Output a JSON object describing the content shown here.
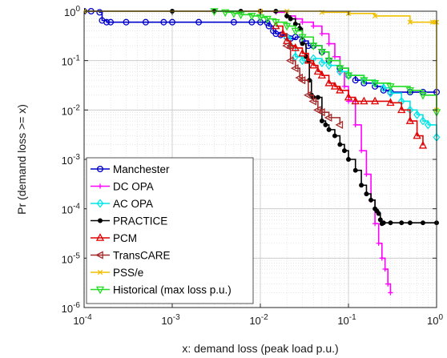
{
  "chart_data": {
    "type": "line",
    "xlabel": "x: demand loss (peak load p.u.)",
    "ylabel": "Pr (demand loss >= x)",
    "xscale": "log",
    "yscale": "log",
    "xlim": [
      0.0001,
      1
    ],
    "ylim": [
      1e-06,
      1
    ],
    "x_ticks": [
      {
        "base": "10",
        "exp": "-4"
      },
      {
        "base": "10",
        "exp": "-3"
      },
      {
        "base": "10",
        "exp": "-2"
      },
      {
        "base": "10",
        "exp": "-1"
      },
      {
        "base": "10",
        "exp": "0"
      }
    ],
    "y_ticks": [
      {
        "base": "10",
        "exp": "0"
      },
      {
        "base": "10",
        "exp": "-1"
      },
      {
        "base": "10",
        "exp": "-2"
      },
      {
        "base": "10",
        "exp": "-3"
      },
      {
        "base": "10",
        "exp": "-4"
      },
      {
        "base": "10",
        "exp": "-5"
      },
      {
        "base": "10",
        "exp": "-6"
      }
    ],
    "grid": true,
    "legend_position": "bottom-left",
    "series": [
      {
        "name": "Manchester",
        "color": "#0000cc",
        "marker": "circle",
        "x": [
          0.0001,
          0.00012,
          0.00015,
          0.00016,
          0.00018,
          0.0002,
          0.0003,
          0.0005,
          0.0008,
          0.001,
          0.002,
          0.005,
          0.008,
          0.01,
          0.012,
          0.0125,
          0.014,
          0.015,
          0.017,
          0.02,
          0.022,
          0.025,
          0.03,
          0.035,
          0.04,
          0.05,
          0.06,
          0.08,
          0.1,
          0.12,
          0.15,
          0.2,
          0.25,
          0.3,
          0.5,
          0.7,
          1.0
        ],
        "y": [
          1,
          1,
          0.95,
          0.65,
          0.6,
          0.6,
          0.6,
          0.6,
          0.6,
          0.6,
          0.6,
          0.6,
          0.6,
          0.6,
          0.58,
          0.5,
          0.4,
          0.35,
          0.33,
          0.3,
          0.28,
          0.3,
          0.25,
          0.2,
          0.2,
          0.15,
          0.1,
          0.07,
          0.05,
          0.04,
          0.035,
          0.03,
          0.025,
          0.023,
          0.023,
          0.023,
          0.023
        ]
      },
      {
        "name": "DC OPA",
        "color": "#ff00ff",
        "marker": "plus",
        "x": [
          0.01,
          0.015,
          0.02,
          0.025,
          0.03,
          0.04,
          0.05,
          0.06,
          0.07,
          0.08,
          0.09,
          0.1,
          0.12,
          0.14,
          0.16,
          0.18,
          0.2,
          0.22,
          0.24,
          0.26,
          0.28,
          0.3
        ],
        "y": [
          1,
          0.95,
          0.8,
          0.7,
          0.6,
          0.5,
          0.35,
          0.22,
          0.12,
          0.06,
          0.03,
          0.015,
          0.005,
          0.0015,
          0.0005,
          0.00015,
          5e-05,
          2e-05,
          1e-05,
          6e-06,
          3e-06,
          2e-06
        ]
      },
      {
        "name": "AC OPA",
        "color": "#00e5e5",
        "marker": "diamond",
        "x": [
          0.02,
          0.022,
          0.025,
          0.03,
          0.04,
          0.05,
          0.06,
          0.08,
          0.1,
          0.15,
          0.2,
          0.25,
          0.3,
          0.4,
          0.5,
          0.6,
          0.7,
          0.8,
          1.0
        ],
        "y": [
          0.3,
          0.2,
          0.12,
          0.1,
          0.11,
          0.09,
          0.08,
          0.06,
          0.05,
          0.04,
          0.035,
          0.028,
          0.022,
          0.015,
          0.01,
          0.008,
          0.006,
          0.005,
          0.0028
        ]
      },
      {
        "name": "PRACTICE",
        "color": "#000000",
        "marker": "dot",
        "x": [
          0.0001,
          0.001,
          0.003,
          0.006,
          0.01,
          0.015,
          0.02,
          0.022,
          0.025,
          0.028,
          0.03,
          0.033,
          0.035,
          0.036,
          0.038,
          0.04,
          0.045,
          0.05,
          0.055,
          0.06,
          0.07,
          0.08,
          0.09,
          0.1,
          0.12,
          0.14,
          0.16,
          0.18,
          0.2,
          0.21,
          0.22,
          0.23,
          0.24,
          0.25,
          0.3,
          0.4,
          0.5,
          0.7,
          1.0
        ],
        "y": [
          1,
          1,
          1,
          1,
          1,
          1,
          0.8,
          0.7,
          0.55,
          0.45,
          0.22,
          0.12,
          0.1,
          0.04,
          0.02,
          0.018,
          0.018,
          0.006,
          0.005,
          0.004,
          0.003,
          0.002,
          0.0015,
          0.001,
          0.0006,
          0.0003,
          0.0002,
          0.00015,
          0.0001,
          9e-05,
          8e-05,
          6e-05,
          5e-05,
          5.2e-05,
          5.2e-05,
          5.2e-05,
          5.2e-05,
          5.2e-05,
          5.2e-05
        ]
      },
      {
        "name": "PCM",
        "color": "#e00000",
        "marker": "triangle-up",
        "x": [
          0.015,
          0.018,
          0.02,
          0.022,
          0.025,
          0.03,
          0.035,
          0.04,
          0.045,
          0.05,
          0.06,
          0.07,
          0.08,
          0.1,
          0.12,
          0.15,
          0.2,
          0.3,
          0.4,
          0.5,
          0.6,
          0.7
        ],
        "y": [
          0.5,
          0.35,
          0.25,
          0.2,
          0.18,
          0.14,
          0.1,
          0.08,
          0.06,
          0.05,
          0.035,
          0.03,
          0.025,
          0.018,
          0.015,
          0.015,
          0.015,
          0.014,
          0.01,
          0.006,
          0.003,
          0.0019
        ]
      },
      {
        "name": "TransCARE",
        "color": "#a52a2a",
        "marker": "triangle-left",
        "x": [
          0.02,
          0.022,
          0.025,
          0.028,
          0.03,
          0.035,
          0.04,
          0.045,
          0.05,
          0.06,
          0.08
        ],
        "y": [
          0.2,
          0.1,
          0.07,
          0.045,
          0.04,
          0.02,
          0.015,
          0.01,
          0.009,
          0.007,
          0.005
        ]
      },
      {
        "name": "PSS/e",
        "color": "#f0c000",
        "marker": "x",
        "x": [
          0.0001,
          0.01,
          0.02,
          0.05,
          0.1,
          0.2,
          0.5,
          0.9,
          0.95,
          1.0,
          1.0
        ],
        "y": [
          1,
          1,
          1,
          0.95,
          0.9,
          0.8,
          0.6,
          0.6,
          0.6,
          0.6,
          0.01
        ]
      },
      {
        "name": "Historical (max loss p.u.)",
        "color": "#22dd22",
        "marker": "triangle-down",
        "x": [
          0.003,
          0.004,
          0.005,
          0.006,
          0.008,
          0.01,
          0.012,
          0.015,
          0.02,
          0.025,
          0.03,
          0.04,
          0.05,
          0.06,
          0.08,
          0.1,
          0.15,
          0.2,
          0.3,
          0.5,
          0.7,
          1.0
        ],
        "y": [
          1,
          0.95,
          0.9,
          0.85,
          0.8,
          0.75,
          0.7,
          0.6,
          0.5,
          0.4,
          0.3,
          0.2,
          0.15,
          0.1,
          0.07,
          0.05,
          0.04,
          0.035,
          0.03,
          0.025,
          0.02,
          0.009
        ]
      }
    ]
  }
}
